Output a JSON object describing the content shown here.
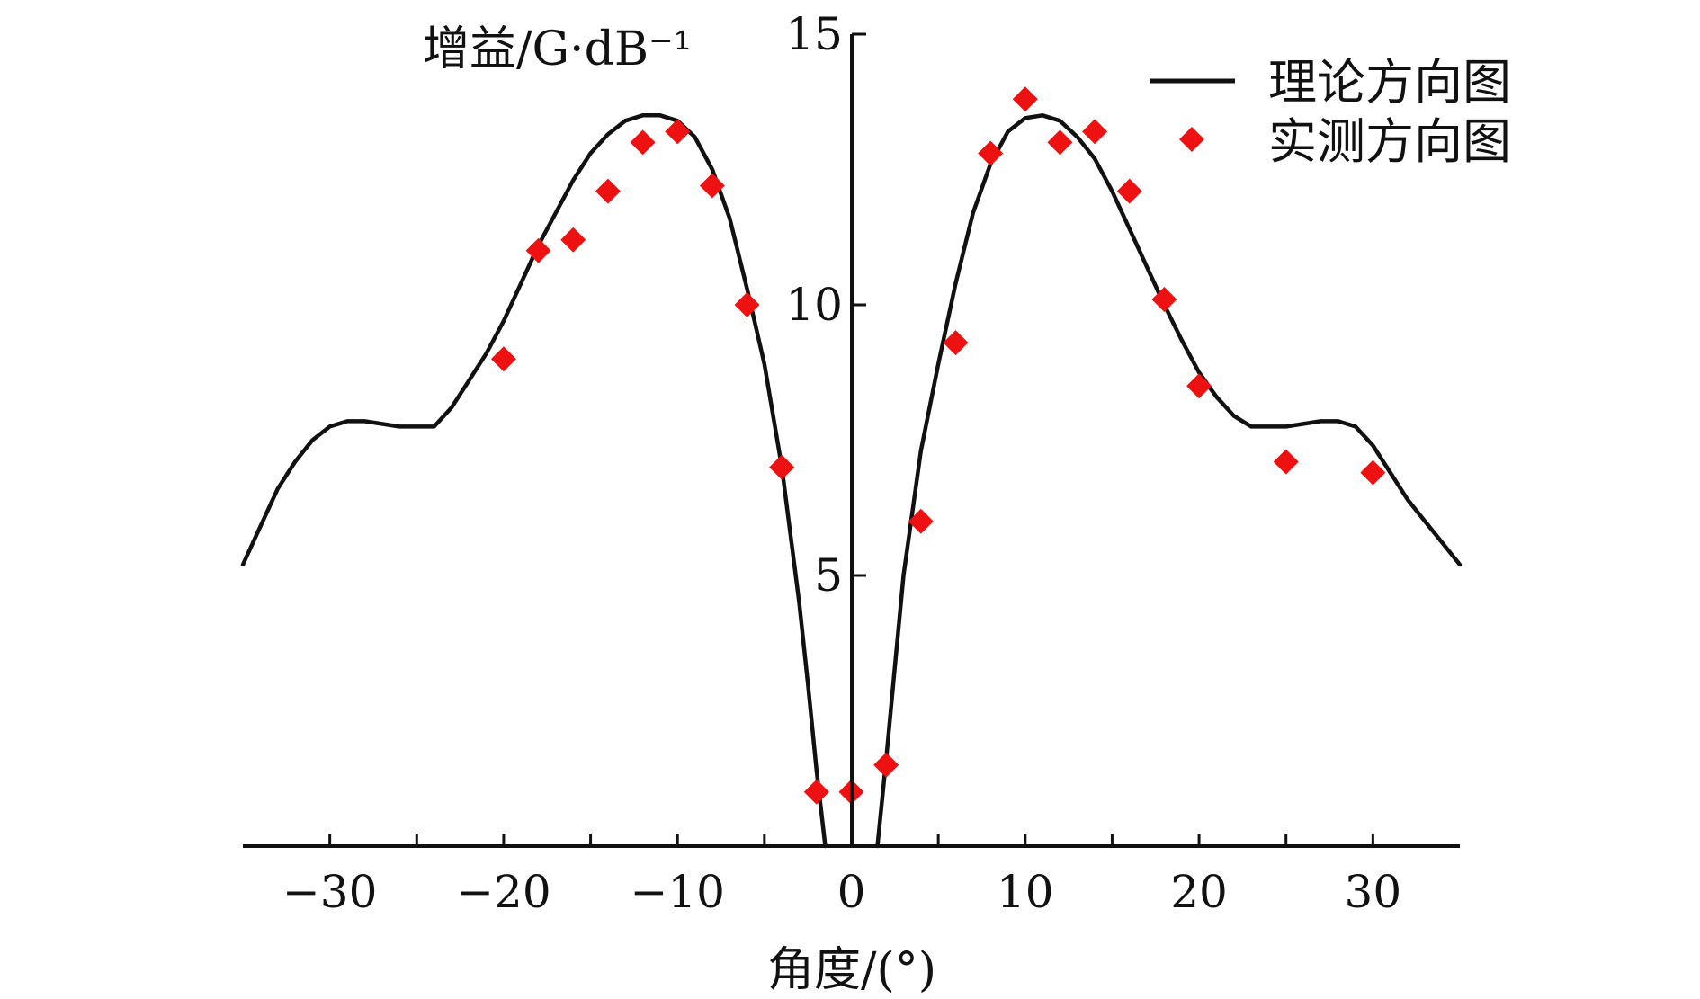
{
  "chart_data": {
    "type": "line",
    "title": "",
    "xlabel": "角度/(°)",
    "ylabel": "增益/G·dB⁻¹",
    "xlim": [
      -35,
      35
    ],
    "ylim": [
      0,
      15
    ],
    "x_ticks": [
      -30,
      -25,
      -20,
      -15,
      -10,
      -5,
      0,
      5,
      10,
      15,
      20,
      25,
      30
    ],
    "x_tick_labels": [
      {
        "value": -30,
        "label": "−30"
      },
      {
        "value": -20,
        "label": "−20"
      },
      {
        "value": -10,
        "label": "−10"
      },
      {
        "value": 0,
        "label": "0"
      },
      {
        "value": 10,
        "label": "10"
      },
      {
        "value": 20,
        "label": "20"
      },
      {
        "value": 30,
        "label": "30"
      }
    ],
    "y_tick_labels": [
      {
        "value": 5,
        "label": "5"
      },
      {
        "value": 10,
        "label": "10"
      },
      {
        "value": 15,
        "label": "15"
      }
    ],
    "grid": false,
    "legend_position": "top-right",
    "series": [
      {
        "name": "理论方向图",
        "kind": "line",
        "color": "#111111",
        "x": [
          -35,
          -34,
          -33,
          -32,
          -31,
          -30,
          -29,
          -28,
          -27,
          -26,
          -25,
          -24,
          -23,
          -22,
          -21,
          -20,
          -19,
          -18,
          -17,
          -16,
          -15,
          -14,
          -13,
          -12,
          -11,
          -10,
          -9,
          -8,
          -7,
          -6,
          -5,
          -4,
          -3,
          -2.5,
          -2,
          -1.5
        ],
        "y": [
          5.2,
          5.9,
          6.6,
          7.1,
          7.5,
          7.75,
          7.85,
          7.85,
          7.8,
          7.75,
          7.75,
          7.75,
          8.1,
          8.6,
          9.1,
          9.7,
          10.4,
          11.1,
          11.7,
          12.3,
          12.8,
          13.15,
          13.4,
          13.5,
          13.5,
          13.4,
          13.1,
          12.5,
          11.6,
          10.3,
          8.9,
          7.0,
          4.5,
          3.0,
          1.4,
          0.0
        ]
      },
      {
        "name": "",
        "kind": "line",
        "color": "#111111",
        "x": [
          1.5,
          2,
          2.5,
          3,
          4,
          5,
          6,
          7,
          8,
          9,
          10,
          11,
          12,
          13,
          14,
          15,
          16,
          17,
          18,
          19,
          20,
          21,
          22,
          23,
          24,
          25,
          26,
          27,
          28,
          29,
          30,
          31,
          32,
          33,
          34,
          35
        ],
        "y": [
          0.0,
          1.6,
          3.3,
          5.0,
          7.3,
          8.9,
          10.4,
          11.7,
          12.6,
          13.2,
          13.45,
          13.5,
          13.4,
          13.1,
          12.7,
          12.1,
          11.4,
          10.7,
          10.0,
          9.35,
          8.75,
          8.3,
          7.95,
          7.75,
          7.75,
          7.75,
          7.8,
          7.85,
          7.85,
          7.75,
          7.4,
          6.9,
          6.4,
          6.0,
          5.6,
          5.2
        ]
      },
      {
        "name": "实测方向图",
        "kind": "scatter",
        "color": "#ee1111",
        "x": [
          -20,
          -18,
          -16,
          -14,
          -12,
          -10,
          -8,
          -6,
          -4,
          -2,
          0,
          2,
          4,
          6,
          8,
          10,
          12,
          14,
          16,
          18,
          20,
          25,
          30
        ],
        "y": [
          9.0,
          11.0,
          11.2,
          12.1,
          13.0,
          13.2,
          12.2,
          10.0,
          7.0,
          1.0,
          1.0,
          1.5,
          6.0,
          9.3,
          12.8,
          13.8,
          13.0,
          13.2,
          12.1,
          10.1,
          8.5,
          7.1,
          6.9
        ]
      }
    ]
  }
}
